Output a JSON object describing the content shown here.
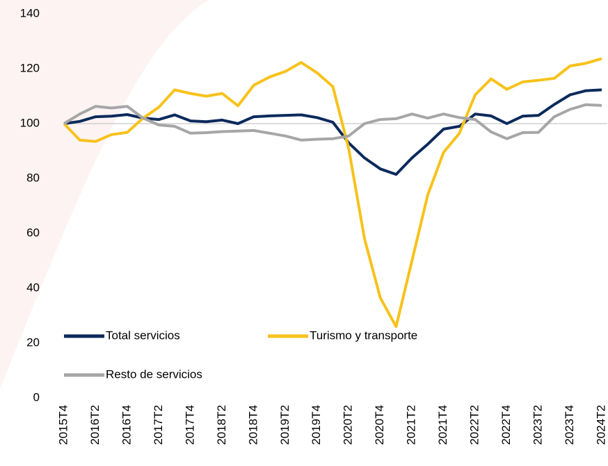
{
  "chart_data": {
    "type": "line",
    "categories": [
      "2015T4",
      null,
      "2016T2",
      null,
      "2016T4",
      null,
      "2017T2",
      null,
      "2017T4",
      null,
      "2018T2",
      null,
      "2018T4",
      null,
      "2019T2",
      null,
      "2019T4",
      null,
      "2020T2",
      null,
      "2020T4",
      null,
      "2021T2",
      null,
      "2021T4",
      null,
      "2022T2",
      null,
      "2022T4",
      null,
      "2023T2",
      null,
      "2023T4",
      null,
      "2024T2"
    ],
    "series": [
      {
        "name": "Total servicios",
        "color": "#0b2a5c",
        "values": [
          100,
          100.8,
          102.5,
          102.7,
          103.3,
          102,
          101.5,
          103.2,
          101,
          100.7,
          101.3,
          100,
          102.5,
          102.8,
          103,
          103.2,
          102.2,
          100.5,
          93,
          87.5,
          83.5,
          81.5,
          87.5,
          92.5,
          98,
          99,
          103.5,
          102.8,
          100,
          102.7,
          103,
          107,
          110.5,
          112,
          112.3
        ]
      },
      {
        "name": "Turismo y transporte",
        "color": "#f7c21b",
        "values": [
          100,
          94,
          93.5,
          96,
          96.8,
          102,
          106,
          112.3,
          111,
          110,
          111,
          106.5,
          114,
          117,
          119,
          122.3,
          118.5,
          113.5,
          91,
          58,
          36.5,
          26,
          50,
          74,
          89.5,
          96.5,
          110.5,
          116.3,
          112.5,
          115.2,
          115.8,
          116.5,
          121,
          122,
          123.7
        ]
      },
      {
        "name": "Resto de servicios",
        "color": "#a6a6a6",
        "values": [
          100,
          103.5,
          106.3,
          105.7,
          106.3,
          102,
          99.5,
          99,
          96.5,
          96.7,
          97.1,
          97.3,
          97.5,
          96.5,
          95.5,
          94,
          94.3,
          94.5,
          95.5,
          100,
          101.5,
          101.8,
          103.5,
          102,
          103.5,
          102.2,
          101.5,
          97,
          94.5,
          96.7,
          96.8,
          102.5,
          105.2,
          106.9,
          106.6
        ]
      }
    ],
    "ylim": [
      0,
      140
    ],
    "yticks": [
      0,
      20,
      40,
      60,
      80,
      100,
      120,
      140
    ],
    "hline": 100
  }
}
